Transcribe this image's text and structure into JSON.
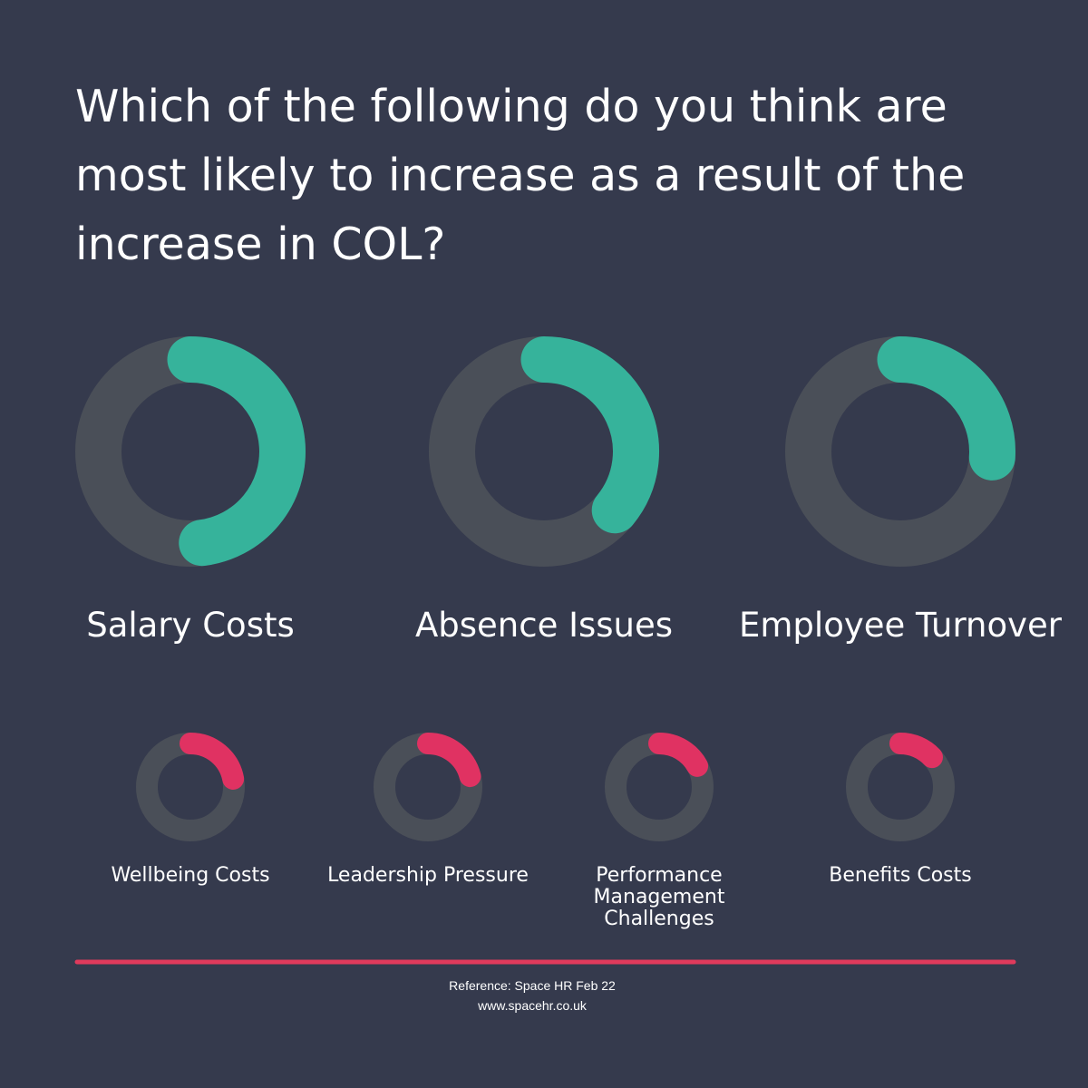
{
  "title": "Which of the following do you think are most likely to increase as a result of the increase in COL?",
  "chart_data": [
    {
      "type": "donut",
      "categories": [
        "Salary Costs",
        "Absence Issues",
        "Employee Turnover"
      ],
      "values": [
        48,
        36,
        26
      ],
      "color": "#36b39b",
      "track_color": "#4a4f58"
    },
    {
      "type": "donut",
      "categories": [
        "Wellbeing Costs",
        "Leadership Pressure",
        "Performance Management Challenges",
        "Benefits Costs"
      ],
      "values": [
        22,
        21,
        17,
        13
      ],
      "color": "#e03262",
      "track_color": "#4a4f58"
    }
  ],
  "footer": {
    "reference": "Reference: Space HR Feb 22",
    "website": "www.spacehr.co.uk"
  }
}
